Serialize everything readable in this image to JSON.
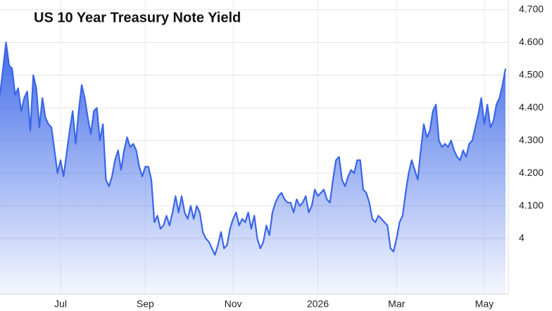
{
  "chart_data": {
    "type": "area",
    "title": "US 10 Year Treasury Note Yield",
    "color": "#3a66e8",
    "values": [
      4.44,
      4.52,
      4.6,
      4.53,
      4.52,
      4.44,
      4.46,
      4.39,
      4.43,
      4.45,
      4.33,
      4.5,
      4.46,
      4.34,
      4.43,
      4.37,
      4.35,
      4.34,
      4.27,
      4.2,
      4.24,
      4.19,
      4.26,
      4.33,
      4.39,
      4.29,
      4.39,
      4.47,
      4.43,
      4.37,
      4.32,
      4.39,
      4.4,
      4.3,
      4.35,
      4.18,
      4.16,
      4.19,
      4.24,
      4.27,
      4.21,
      4.27,
      4.31,
      4.28,
      4.29,
      4.27,
      4.22,
      4.19,
      4.22,
      4.22,
      4.18,
      4.05,
      4.07,
      4.03,
      4.04,
      4.07,
      4.04,
      4.08,
      4.13,
      4.08,
      4.13,
      4.08,
      4.06,
      4.1,
      4.06,
      4.1,
      4.08,
      4.02,
      4.0,
      3.99,
      3.97,
      3.95,
      3.98,
      4.02,
      3.97,
      3.98,
      4.03,
      4.06,
      4.08,
      4.04,
      4.06,
      4.05,
      4.08,
      4.03,
      4.07,
      4.0,
      3.97,
      3.99,
      4.04,
      4.01,
      4.08,
      4.11,
      4.13,
      4.14,
      4.12,
      4.11,
      4.11,
      4.08,
      4.12,
      4.1,
      4.11,
      4.13,
      4.08,
      4.1,
      4.15,
      4.13,
      4.14,
      4.15,
      4.12,
      4.11,
      4.18,
      4.24,
      4.25,
      4.18,
      4.16,
      4.19,
      4.21,
      4.2,
      4.24,
      4.24,
      4.15,
      4.14,
      4.11,
      4.06,
      4.05,
      4.07,
      4.06,
      4.05,
      4.04,
      3.97,
      3.96,
      4.0,
      4.05,
      4.07,
      4.14,
      4.2,
      4.24,
      4.21,
      4.18,
      4.27,
      4.35,
      4.31,
      4.33,
      4.39,
      4.41,
      4.3,
      4.28,
      4.29,
      4.28,
      4.3,
      4.27,
      4.25,
      4.24,
      4.27,
      4.25,
      4.29,
      4.3,
      4.34,
      4.38,
      4.43,
      4.35,
      4.41,
      4.34,
      4.36,
      4.41,
      4.43,
      4.47,
      4.52
    ],
    "xlim": [
      0,
      167
    ],
    "xticks": [
      {
        "value": 20,
        "label": "Jul"
      },
      {
        "value": 48,
        "label": "Sep"
      },
      {
        "value": 77,
        "label": "Nov"
      },
      {
        "value": 105,
        "label": "2026"
      },
      {
        "value": 131,
        "label": "Mar"
      },
      {
        "value": 160,
        "label": "May"
      }
    ],
    "ylim": [
      3.83,
      4.73
    ],
    "yticks": [
      4,
      {
        "value": 4.1,
        "label": "4.100"
      },
      {
        "value": 4.2,
        "label": "4.200"
      },
      {
        "value": 4.3,
        "label": "4.300"
      },
      {
        "value": 4.4,
        "label": "4.400"
      },
      {
        "value": 4.5,
        "label": "4.500"
      },
      {
        "value": 4.6,
        "label": "4.600"
      },
      {
        "value": 4.7,
        "label": "4.700"
      }
    ],
    "grid": true
  }
}
